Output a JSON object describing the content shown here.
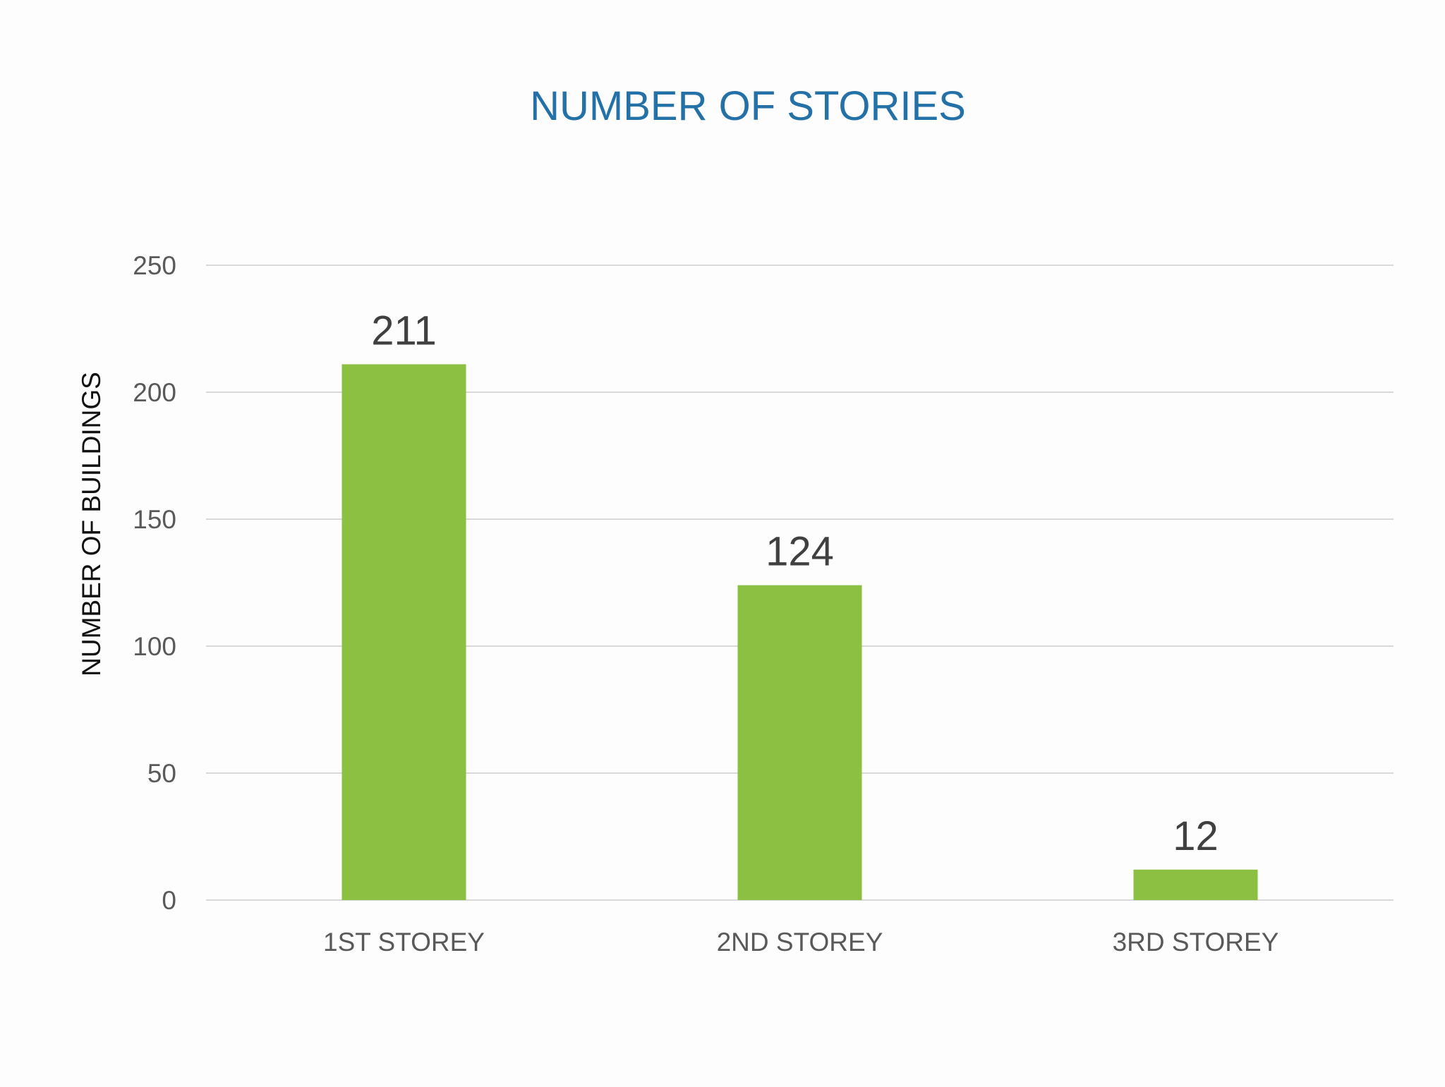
{
  "chart_data": {
    "type": "bar",
    "title": "NUMBER OF STORIES",
    "xlabel": "",
    "ylabel": "NUMBER OF BUILDINGS",
    "categories": [
      "1ST STOREY",
      "2ND STOREY",
      "3RD STOREY"
    ],
    "values": [
      211,
      124,
      12
    ],
    "data_labels": [
      "211",
      "124",
      "12"
    ],
    "ylim": [
      0,
      250
    ],
    "yticks": [
      0,
      50,
      100,
      150,
      200,
      250
    ],
    "grid": true,
    "legend": "none",
    "bar_color": "#8cc043"
  }
}
